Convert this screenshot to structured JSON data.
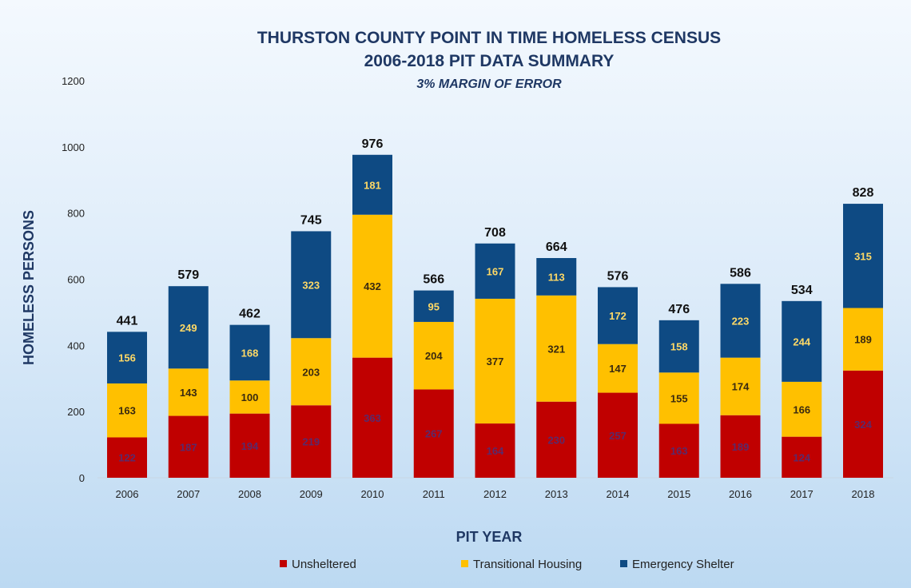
{
  "chart_data": {
    "type": "bar",
    "stacked": true,
    "title": "THURSTON COUNTY POINT IN TIME HOMELESS CENSUS",
    "subtitle": "2006-2018 PIT DATA SUMMARY",
    "note": "3% MARGIN OF ERROR",
    "xlabel": "PIT YEAR",
    "ylabel": "HOMELESS PERSONS",
    "ylim": [
      0,
      1200
    ],
    "yticks": [
      0,
      200,
      400,
      600,
      800,
      1000,
      1200
    ],
    "grid": false,
    "legend_position": "bottom",
    "categories": [
      "2006",
      "2007",
      "2008",
      "2009",
      "2010",
      "2011",
      "2012",
      "2013",
      "2014",
      "2015",
      "2016",
      "2017",
      "2018"
    ],
    "series": [
      {
        "name": "Unsheltered",
        "color": "#c00000",
        "label_color": "#5a2a6a",
        "values": [
          122,
          187,
          194,
          219,
          363,
          267,
          164,
          230,
          257,
          163,
          189,
          124,
          324
        ]
      },
      {
        "name": "Transitional Housing",
        "color": "#ffc000",
        "label_color": "#3a2a10",
        "values": [
          163,
          143,
          100,
          203,
          432,
          204,
          377,
          321,
          147,
          155,
          174,
          166,
          189
        ]
      },
      {
        "name": "Emergency Shelter",
        "color": "#0e4a83",
        "label_color": "#ffd966",
        "values": [
          156,
          249,
          168,
          323,
          181,
          95,
          167,
          113,
          172,
          158,
          223,
          244,
          315
        ]
      }
    ],
    "totals": [
      441,
      579,
      462,
      745,
      976,
      566,
      708,
      664,
      576,
      476,
      586,
      534,
      828
    ],
    "highlight_total_color": "#c00000"
  }
}
